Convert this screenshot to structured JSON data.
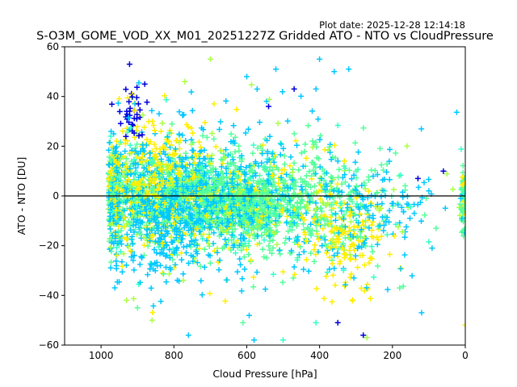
{
  "chart_data": {
    "type": "scatter",
    "plot_date": "Plot date: 2025-12-28 12:14:18",
    "title": "S-O3M_GOME_VOD_XX_M01_20251227Z Gridded ATO - NTO vs CloudPressure",
    "xlabel": "Cloud Pressure [hPa]",
    "ylabel": "ATO - NTO [DU]",
    "xlim": [
      1100,
      0
    ],
    "ylim": [
      -60,
      60
    ],
    "x_inverted": true,
    "xticks": [
      1000,
      800,
      600,
      400,
      200,
      0
    ],
    "yticks": [
      -60,
      -40,
      -20,
      0,
      20,
      40,
      60
    ],
    "reference_line_y": 0,
    "marker": "+",
    "grid": false,
    "series_colors": [
      "#55ff99",
      "#00c8ff",
      "#aaff44",
      "#ffee00",
      "#0000dd",
      "#33ffcc"
    ],
    "density_clusters": [
      {
        "x_center": 780,
        "x_spread": 150,
        "y_center": 0,
        "y_spread": 9,
        "count": 1400,
        "color_index": 0
      },
      {
        "x_center": 600,
        "x_spread": 60,
        "y_center": -5,
        "y_spread": 7,
        "count": 500,
        "color_index": 0
      },
      {
        "x_center": 850,
        "x_spread": 90,
        "y_center": -10,
        "y_spread": 12,
        "count": 350,
        "color_index": 1
      },
      {
        "x_center": 420,
        "x_spread": 110,
        "y_center": -3,
        "y_spread": 12,
        "count": 450,
        "color_index": 0
      },
      {
        "x_center": 330,
        "x_spread": 60,
        "y_center": -20,
        "y_spread": 10,
        "count": 160,
        "color_index": 3
      },
      {
        "x_center": 870,
        "x_spread": 80,
        "y_center": 12,
        "y_spread": 9,
        "count": 200,
        "color_index": 3
      },
      {
        "x_center": 700,
        "x_spread": 200,
        "y_center": 0,
        "y_spread": 16,
        "count": 450,
        "color_index": 1
      },
      {
        "x_center": 920,
        "x_spread": 20,
        "y_center": 35,
        "y_spread": 7,
        "count": 45,
        "color_index": 4
      },
      {
        "x_center": 220,
        "x_spread": 70,
        "y_center": -5,
        "y_spread": 9,
        "count": 90,
        "color_index": 1
      },
      {
        "x_center": 5,
        "x_spread": 4,
        "y_center": -3,
        "y_spread": 8,
        "count": 70,
        "color_index": 0
      }
    ],
    "outliers": [
      {
        "x": 700,
        "y": 55,
        "c": 2
      },
      {
        "x": 400,
        "y": 55,
        "c": 1
      },
      {
        "x": 520,
        "y": 51,
        "c": 1
      },
      {
        "x": 360,
        "y": 50,
        "c": 1
      },
      {
        "x": 320,
        "y": 51,
        "c": 1
      },
      {
        "x": 600,
        "y": 48,
        "c": 1
      },
      {
        "x": 770,
        "y": 46,
        "c": 2
      },
      {
        "x": 470,
        "y": 43,
        "c": 4
      },
      {
        "x": 410,
        "y": 43,
        "c": 1
      },
      {
        "x": 880,
        "y": 45,
        "c": 4
      },
      {
        "x": 540,
        "y": 36,
        "c": 4
      },
      {
        "x": 690,
        "y": 37,
        "c": 3
      },
      {
        "x": 130,
        "y": 7,
        "c": 4
      },
      {
        "x": 60,
        "y": 10,
        "c": 4
      },
      {
        "x": 160,
        "y": 20,
        "c": 2
      },
      {
        "x": 100,
        "y": 2,
        "c": 1
      },
      {
        "x": 120,
        "y": -47,
        "c": 1
      },
      {
        "x": 580,
        "y": -58,
        "c": 1
      },
      {
        "x": 500,
        "y": -58,
        "c": 5
      },
      {
        "x": 410,
        "y": -51,
        "c": 5
      },
      {
        "x": 270,
        "y": -57,
        "c": 2
      },
      {
        "x": 610,
        "y": -51,
        "c": 0
      },
      {
        "x": 760,
        "y": -56,
        "c": 1
      },
      {
        "x": 350,
        "y": -51,
        "c": 4
      },
      {
        "x": 280,
        "y": -56,
        "c": 4
      },
      {
        "x": 0,
        "y": -52,
        "c": 3
      },
      {
        "x": 860,
        "y": -50,
        "c": 2
      },
      {
        "x": 900,
        "y": -45,
        "c": 0
      },
      {
        "x": 930,
        "y": -42,
        "c": 2
      },
      {
        "x": 180,
        "y": -37,
        "c": 0
      },
      {
        "x": 80,
        "y": -13,
        "c": 0
      },
      {
        "x": 140,
        "y": -7,
        "c": 1
      }
    ]
  }
}
